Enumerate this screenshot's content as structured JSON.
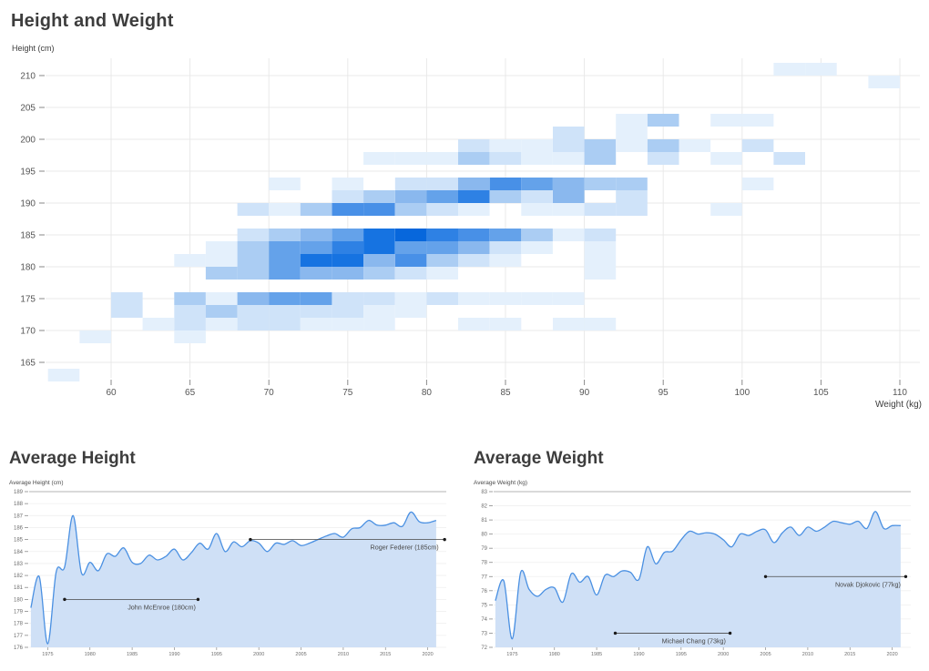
{
  "page": {
    "title": "Height and Weight"
  },
  "chart_data": [
    {
      "type": "heatmap",
      "title": "Height and Weight",
      "x_axis_label": "Weight (kg)",
      "y_axis_label": "Height (cm)",
      "x_ticks": [
        60,
        65,
        70,
        75,
        80,
        85,
        90,
        95,
        100,
        105,
        110
      ],
      "y_ticks": [
        165,
        170,
        175,
        180,
        185,
        190,
        195,
        200,
        205,
        210
      ],
      "x_domain": [
        56,
        112
      ],
      "y_domain": [
        162,
        212
      ],
      "bin_width_kg": 2,
      "bin_height_cm": 2,
      "grid": true,
      "color_scale": [
        "#ffffff",
        "#e4f0fc",
        "#cfe3f9",
        "#abcdf3",
        "#8ab8ee",
        "#64a2ea",
        "#4890e7",
        "#2e81e4",
        "#1673e1",
        "#0767dc"
      ],
      "cell_format": [
        "weight_kg_lower",
        "height_cm_lower",
        "density_level_0_9"
      ],
      "cells": [
        [
          56,
          162,
          1
        ],
        [
          58,
          168,
          1
        ],
        [
          64,
          168,
          1
        ],
        [
          62,
          170,
          1
        ],
        [
          64,
          170,
          2
        ],
        [
          66,
          170,
          1
        ],
        [
          68,
          170,
          2
        ],
        [
          70,
          170,
          2
        ],
        [
          72,
          170,
          1
        ],
        [
          74,
          170,
          1
        ],
        [
          76,
          170,
          1
        ],
        [
          82,
          170,
          1
        ],
        [
          84,
          170,
          1
        ],
        [
          88,
          170,
          1
        ],
        [
          90,
          170,
          1
        ],
        [
          60,
          172,
          2
        ],
        [
          64,
          172,
          2
        ],
        [
          66,
          172,
          3
        ],
        [
          68,
          172,
          2
        ],
        [
          70,
          172,
          2
        ],
        [
          72,
          172,
          2
        ],
        [
          74,
          172,
          2
        ],
        [
          76,
          172,
          1
        ],
        [
          78,
          172,
          1
        ],
        [
          60,
          174,
          2
        ],
        [
          64,
          174,
          3
        ],
        [
          66,
          174,
          1
        ],
        [
          68,
          174,
          4
        ],
        [
          70,
          174,
          5
        ],
        [
          72,
          174,
          5
        ],
        [
          74,
          174,
          2
        ],
        [
          76,
          174,
          2
        ],
        [
          78,
          174,
          1
        ],
        [
          80,
          174,
          2
        ],
        [
          82,
          174,
          1
        ],
        [
          84,
          174,
          1
        ],
        [
          86,
          174,
          1
        ],
        [
          88,
          174,
          1
        ],
        [
          66,
          178,
          3
        ],
        [
          68,
          178,
          3
        ],
        [
          70,
          178,
          5
        ],
        [
          72,
          178,
          4
        ],
        [
          74,
          178,
          4
        ],
        [
          76,
          178,
          3
        ],
        [
          78,
          178,
          2
        ],
        [
          80,
          178,
          1
        ],
        [
          90,
          178,
          1
        ],
        [
          64,
          180,
          1
        ],
        [
          66,
          180,
          1
        ],
        [
          68,
          180,
          3
        ],
        [
          70,
          180,
          5
        ],
        [
          72,
          180,
          8
        ],
        [
          74,
          180,
          8
        ],
        [
          76,
          180,
          4
        ],
        [
          78,
          180,
          6
        ],
        [
          80,
          180,
          3
        ],
        [
          82,
          180,
          2
        ],
        [
          84,
          180,
          1
        ],
        [
          90,
          180,
          1
        ],
        [
          66,
          182,
          1
        ],
        [
          68,
          182,
          3
        ],
        [
          70,
          182,
          5
        ],
        [
          72,
          182,
          5
        ],
        [
          74,
          182,
          7
        ],
        [
          76,
          182,
          8
        ],
        [
          78,
          182,
          5
        ],
        [
          80,
          182,
          5
        ],
        [
          82,
          182,
          4
        ],
        [
          84,
          182,
          2
        ],
        [
          86,
          182,
          1
        ],
        [
          90,
          182,
          1
        ],
        [
          68,
          184,
          2
        ],
        [
          70,
          184,
          3
        ],
        [
          72,
          184,
          4
        ],
        [
          74,
          184,
          5
        ],
        [
          76,
          184,
          8
        ],
        [
          78,
          184,
          9
        ],
        [
          80,
          184,
          7
        ],
        [
          82,
          184,
          6
        ],
        [
          84,
          184,
          5
        ],
        [
          86,
          184,
          3
        ],
        [
          88,
          184,
          1
        ],
        [
          90,
          184,
          2
        ],
        [
          68,
          188,
          2
        ],
        [
          70,
          188,
          1
        ],
        [
          72,
          188,
          3
        ],
        [
          74,
          188,
          6
        ],
        [
          76,
          188,
          6
        ],
        [
          78,
          188,
          3
        ],
        [
          80,
          188,
          2
        ],
        [
          82,
          188,
          1
        ],
        [
          86,
          188,
          1
        ],
        [
          88,
          188,
          1
        ],
        [
          90,
          188,
          2
        ],
        [
          92,
          188,
          2
        ],
        [
          98,
          188,
          1
        ],
        [
          74,
          190,
          2
        ],
        [
          76,
          190,
          3
        ],
        [
          78,
          190,
          4
        ],
        [
          80,
          190,
          5
        ],
        [
          82,
          190,
          7
        ],
        [
          84,
          190,
          3
        ],
        [
          86,
          190,
          2
        ],
        [
          88,
          190,
          4
        ],
        [
          92,
          190,
          2
        ],
        [
          70,
          192,
          1
        ],
        [
          74,
          192,
          1
        ],
        [
          78,
          192,
          2
        ],
        [
          80,
          192,
          2
        ],
        [
          82,
          192,
          4
        ],
        [
          84,
          192,
          6
        ],
        [
          86,
          192,
          5
        ],
        [
          88,
          192,
          4
        ],
        [
          90,
          192,
          3
        ],
        [
          92,
          192,
          3
        ],
        [
          100,
          192,
          1
        ],
        [
          76,
          196,
          1
        ],
        [
          78,
          196,
          1
        ],
        [
          80,
          196,
          1
        ],
        [
          82,
          196,
          3
        ],
        [
          84,
          196,
          2
        ],
        [
          86,
          196,
          1
        ],
        [
          88,
          196,
          1
        ],
        [
          90,
          196,
          3
        ],
        [
          94,
          196,
          2
        ],
        [
          98,
          196,
          1
        ],
        [
          102,
          196,
          2
        ],
        [
          82,
          198,
          2
        ],
        [
          84,
          198,
          1
        ],
        [
          86,
          198,
          1
        ],
        [
          88,
          198,
          2
        ],
        [
          90,
          198,
          3
        ],
        [
          92,
          198,
          1
        ],
        [
          94,
          198,
          3
        ],
        [
          96,
          198,
          1
        ],
        [
          100,
          198,
          2
        ],
        [
          88,
          200,
          2
        ],
        [
          92,
          200,
          1
        ],
        [
          92,
          202,
          1
        ],
        [
          94,
          202,
          3
        ],
        [
          98,
          202,
          1
        ],
        [
          100,
          202,
          1
        ],
        [
          108,
          208,
          1
        ],
        [
          102,
          210,
          1
        ],
        [
          104,
          210,
          1
        ]
      ]
    },
    {
      "type": "area",
      "title": "Average Height",
      "y_axis_label": "Average Height (cm)",
      "y_ticks": [
        189,
        188,
        187,
        186,
        185,
        184,
        183,
        182,
        181,
        180,
        179,
        178,
        177,
        176
      ],
      "x_ticks": [
        1975,
        1980,
        1985,
        1990,
        1995,
        2000,
        2005,
        2010,
        2015,
        2020
      ],
      "x_domain": [
        1972.8,
        2022.2
      ],
      "y_domain": [
        176,
        189
      ],
      "series_start_year": 1973,
      "values": [
        179.3,
        181.9,
        176.3,
        182.3,
        182.7,
        187.0,
        182.2,
        183.1,
        182.4,
        183.8,
        183.6,
        184.3,
        183.1,
        183.0,
        183.7,
        183.3,
        183.6,
        184.2,
        183.3,
        183.9,
        184.7,
        184.2,
        185.5,
        184.0,
        184.8,
        184.4,
        184.9,
        184.7,
        184.0,
        184.7,
        184.6,
        184.9,
        184.5,
        184.7,
        185.0,
        185.3,
        185.5,
        185.2,
        185.9,
        186.0,
        186.6,
        186.2,
        186.2,
        186.4,
        186.1,
        187.3,
        186.5,
        186.4,
        186.6
      ],
      "line_color": "#4a90e2",
      "fill_color": "#cfe0f6",
      "annotations": [
        {
          "label": "John McEnroe (180cm)",
          "value": 180,
          "x1": 1977,
          "x2": 1992.8,
          "label_x": 1988.5,
          "anchor": "middle"
        },
        {
          "label": "Roger Federer (185cm)",
          "value": 185,
          "x1": 1999,
          "x2": 2022,
          "label_x": 2021.3,
          "anchor": "end"
        }
      ]
    },
    {
      "type": "area",
      "title": "Average Weight",
      "y_axis_label": "Average Weight (kg)",
      "y_ticks": [
        83,
        82,
        81,
        80,
        79,
        78,
        77,
        76,
        75,
        74,
        73,
        72
      ],
      "x_ticks": [
        1975,
        1980,
        1985,
        1990,
        1995,
        2000,
        2005,
        2010,
        2015,
        2020
      ],
      "x_domain": [
        1972.8,
        2022.2
      ],
      "y_domain": [
        72,
        83
      ],
      "series_start_year": 1973,
      "values": [
        75.3,
        76.7,
        72.6,
        77.3,
        76.1,
        75.6,
        76.1,
        76.2,
        75.2,
        77.2,
        76.6,
        77.0,
        75.7,
        77.1,
        77.0,
        77.4,
        77.3,
        76.8,
        79.1,
        77.9,
        78.7,
        78.8,
        79.6,
        80.2,
        80.0,
        80.1,
        80.0,
        79.6,
        79.1,
        80.0,
        79.9,
        80.2,
        80.3,
        79.4,
        80.1,
        80.5,
        79.9,
        80.5,
        80.2,
        80.5,
        80.9,
        80.8,
        80.7,
        80.9,
        80.4,
        81.6,
        80.4,
        80.6,
        80.6
      ],
      "line_color": "#4a90e2",
      "fill_color": "#cfe0f6",
      "annotations": [
        {
          "label": "Michael Chang (73kg)",
          "value": 73,
          "x1": 1987.2,
          "x2": 2000.8,
          "label_x": 2000.3,
          "anchor": "end"
        },
        {
          "label": "Novak Djokovic (77kg)",
          "value": 77,
          "x1": 2005,
          "x2": 2021.6,
          "label_x": 2021.0,
          "anchor": "end"
        }
      ]
    }
  ],
  "style": {
    "grid_color": "#e9e9e9",
    "axis_line_color": "#b3b3b3",
    "tick_mark_color": "#8a8a8a",
    "tick_label_color": "#555555",
    "small_label_color": "#6e6e6e",
    "annotation_color": "#474747",
    "annotation_dot_color": "#1a1a1a"
  }
}
